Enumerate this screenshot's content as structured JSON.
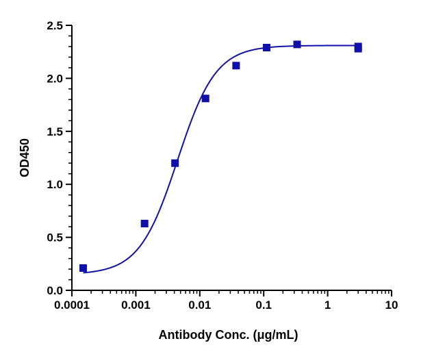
{
  "chart_data": {
    "type": "scatter",
    "title": "",
    "xlabel": "Antibody Conc. (μg/mL)",
    "ylabel": "OD450",
    "x_scale": "log",
    "xlim": [
      0.0001,
      10
    ],
    "ylim": [
      0,
      2.5
    ],
    "x_ticks": [
      "0.0001",
      "0.001",
      "0.01",
      "0.1",
      "1",
      "10"
    ],
    "y_ticks": [
      "0.0",
      "0.5",
      "1.0",
      "1.5",
      "2.0",
      "2.5"
    ],
    "grid": false,
    "legend": "none",
    "series_color": "#1010a8",
    "points": [
      {
        "x": 0.00015,
        "y": 0.21
      },
      {
        "x": 0.00137,
        "y": 0.63
      },
      {
        "x": 0.0041,
        "y": 1.2
      },
      {
        "x": 0.0123,
        "y": 1.81
      },
      {
        "x": 0.037,
        "y": 2.12
      },
      {
        "x": 0.111,
        "y": 2.29
      },
      {
        "x": 0.333,
        "y": 2.32
      },
      {
        "x": 3.0,
        "y": 2.3
      },
      {
        "x": 3.0,
        "y": 2.28
      }
    ],
    "fit_curve": {
      "model": "4PL",
      "bottom": 0.15,
      "top": 2.31,
      "ec50": 0.0045,
      "hill": 1.45
    }
  }
}
